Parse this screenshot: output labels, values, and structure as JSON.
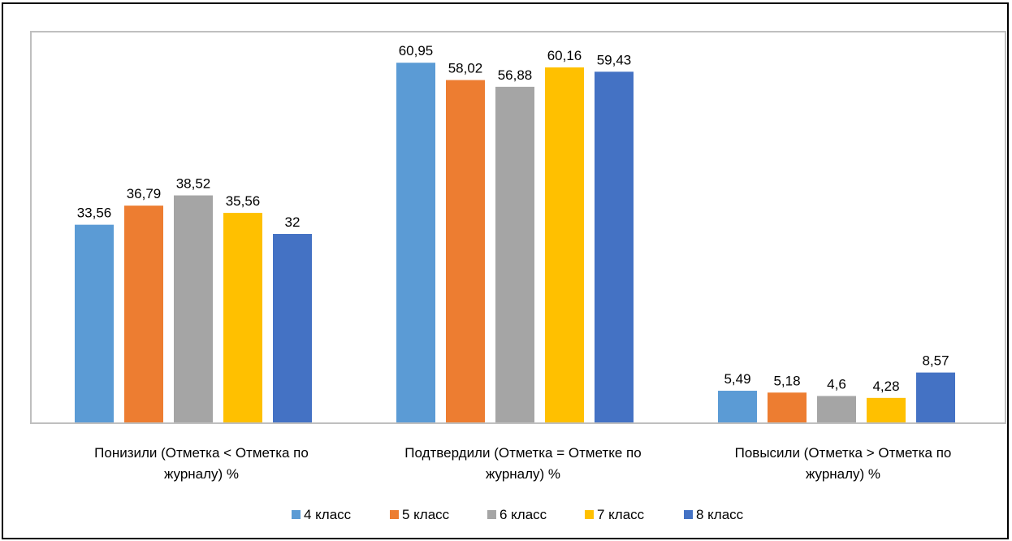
{
  "chart_data": {
    "type": "bar",
    "title": "",
    "xlabel": "",
    "ylabel": "",
    "ylim": [
      0,
      66.2
    ],
    "grid": false,
    "legend_position": "bottom",
    "categories": [
      [
        "Понизили (Отметка < Отметка по",
        "журналу) %"
      ],
      [
        "Подтвердили (Отметка = Отметке по",
        "журналу) %"
      ],
      [
        "Повысили (Отметка > Отметка по",
        "журналу) %"
      ]
    ],
    "series": [
      {
        "name": "4 класс",
        "color": "#5B9BD5",
        "values": [
          33.56,
          60.95,
          5.49
        ],
        "labels": [
          "33,56",
          "60,95",
          "5,49"
        ]
      },
      {
        "name": "5 класс",
        "color": "#ED7D31",
        "values": [
          36.79,
          58.02,
          5.18
        ],
        "labels": [
          "36,79",
          "58,02",
          "5,18"
        ]
      },
      {
        "name": "6 класс",
        "color": "#A5A5A5",
        "values": [
          38.52,
          56.88,
          4.6
        ],
        "labels": [
          "38,52",
          "56,88",
          "4,6"
        ]
      },
      {
        "name": "7 класс",
        "color": "#FFC000",
        "values": [
          35.56,
          60.16,
          4.28
        ],
        "labels": [
          "35,56",
          "60,16",
          "4,28"
        ]
      },
      {
        "name": "8 класс",
        "color": "#4472C4",
        "values": [
          32,
          59.43,
          8.57
        ],
        "labels": [
          "32",
          "59,43",
          "8,57"
        ]
      }
    ]
  }
}
